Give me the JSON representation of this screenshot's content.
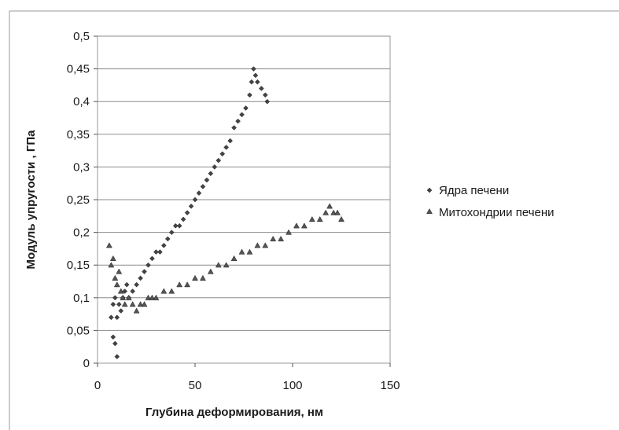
{
  "chart_data": {
    "type": "scatter",
    "title": "",
    "xlabel": "Глубина деформирования, нм",
    "ylabel": "Модуль упругости , ГПа",
    "xlim": [
      0,
      150
    ],
    "ylim": [
      0,
      0.5
    ],
    "x_ticks": [
      "0",
      "50",
      "100",
      "150"
    ],
    "y_ticks": [
      "0",
      "0,05",
      "0,1",
      "0,15",
      "0,2",
      "0,25",
      "0,3",
      "0,35",
      "0,4",
      "0,45",
      "0,5"
    ],
    "grid": "horizontal",
    "legend_position": "right",
    "series": [
      {
        "name": "Ядра печени",
        "marker": "diamond",
        "color": "#333333",
        "points": [
          [
            7,
            0.07
          ],
          [
            8,
            0.04
          ],
          [
            9,
            0.03
          ],
          [
            10,
            0.01
          ],
          [
            8,
            0.09
          ],
          [
            9,
            0.1
          ],
          [
            10,
            0.07
          ],
          [
            11,
            0.09
          ],
          [
            12,
            0.08
          ],
          [
            13,
            0.1
          ],
          [
            14,
            0.11
          ],
          [
            15,
            0.12
          ],
          [
            16,
            0.1
          ],
          [
            18,
            0.11
          ],
          [
            20,
            0.12
          ],
          [
            22,
            0.13
          ],
          [
            24,
            0.14
          ],
          [
            26,
            0.15
          ],
          [
            28,
            0.16
          ],
          [
            30,
            0.17
          ],
          [
            32,
            0.17
          ],
          [
            34,
            0.18
          ],
          [
            36,
            0.19
          ],
          [
            38,
            0.2
          ],
          [
            40,
            0.21
          ],
          [
            42,
            0.21
          ],
          [
            44,
            0.22
          ],
          [
            46,
            0.23
          ],
          [
            48,
            0.24
          ],
          [
            50,
            0.25
          ],
          [
            52,
            0.26
          ],
          [
            54,
            0.27
          ],
          [
            56,
            0.28
          ],
          [
            58,
            0.29
          ],
          [
            60,
            0.3
          ],
          [
            62,
            0.31
          ],
          [
            64,
            0.32
          ],
          [
            66,
            0.33
          ],
          [
            68,
            0.34
          ],
          [
            70,
            0.36
          ],
          [
            72,
            0.37
          ],
          [
            74,
            0.38
          ],
          [
            76,
            0.39
          ],
          [
            78,
            0.41
          ],
          [
            79,
            0.43
          ],
          [
            80,
            0.45
          ],
          [
            81,
            0.44
          ],
          [
            82,
            0.43
          ],
          [
            84,
            0.42
          ],
          [
            86,
            0.41
          ],
          [
            87,
            0.4
          ]
        ]
      },
      {
        "name": "Митохондрии печени",
        "marker": "triangle",
        "color": "#333333",
        "points": [
          [
            6,
            0.18
          ],
          [
            7,
            0.15
          ],
          [
            8,
            0.16
          ],
          [
            9,
            0.13
          ],
          [
            10,
            0.12
          ],
          [
            11,
            0.14
          ],
          [
            12,
            0.11
          ],
          [
            13,
            0.1
          ],
          [
            14,
            0.09
          ],
          [
            16,
            0.1
          ],
          [
            18,
            0.09
          ],
          [
            20,
            0.08
          ],
          [
            22,
            0.09
          ],
          [
            24,
            0.09
          ],
          [
            26,
            0.1
          ],
          [
            28,
            0.1
          ],
          [
            30,
            0.1
          ],
          [
            34,
            0.11
          ],
          [
            38,
            0.11
          ],
          [
            42,
            0.12
          ],
          [
            46,
            0.12
          ],
          [
            50,
            0.13
          ],
          [
            54,
            0.13
          ],
          [
            58,
            0.14
          ],
          [
            62,
            0.15
          ],
          [
            66,
            0.15
          ],
          [
            70,
            0.16
          ],
          [
            74,
            0.17
          ],
          [
            78,
            0.17
          ],
          [
            82,
            0.18
          ],
          [
            86,
            0.18
          ],
          [
            90,
            0.19
          ],
          [
            94,
            0.19
          ],
          [
            98,
            0.2
          ],
          [
            102,
            0.21
          ],
          [
            106,
            0.21
          ],
          [
            110,
            0.22
          ],
          [
            114,
            0.22
          ],
          [
            117,
            0.23
          ],
          [
            119,
            0.24
          ],
          [
            121,
            0.23
          ],
          [
            123,
            0.23
          ],
          [
            125,
            0.22
          ]
        ]
      }
    ]
  }
}
